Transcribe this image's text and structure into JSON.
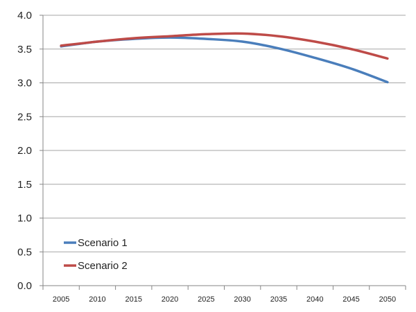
{
  "chart_data": {
    "type": "line",
    "title": "",
    "xlabel": "",
    "ylabel": "",
    "x": [
      2005,
      2010,
      2015,
      2020,
      2025,
      2030,
      2035,
      2040,
      2045,
      2050
    ],
    "ylim": [
      0,
      4.0
    ],
    "yticks": [
      "0.0",
      "0.5",
      "1.0",
      "1.5",
      "2.0",
      "2.5",
      "3.0",
      "3.5",
      "4.0"
    ],
    "xticks": [
      "2005",
      "2010",
      "2015",
      "2020",
      "2025",
      "2030",
      "2035",
      "2040",
      "2045",
      "2050"
    ],
    "grid": "horizontal",
    "legend_position": "bottom-left",
    "series": [
      {
        "name": "Scenario 1",
        "color": "#4a7ebb",
        "values": [
          3.54,
          3.61,
          3.65,
          3.67,
          3.65,
          3.61,
          3.51,
          3.37,
          3.21,
          3.01
        ]
      },
      {
        "name": "Scenario 2",
        "color": "#be4b48",
        "values": [
          3.55,
          3.61,
          3.66,
          3.69,
          3.72,
          3.73,
          3.69,
          3.61,
          3.5,
          3.36
        ]
      }
    ]
  }
}
